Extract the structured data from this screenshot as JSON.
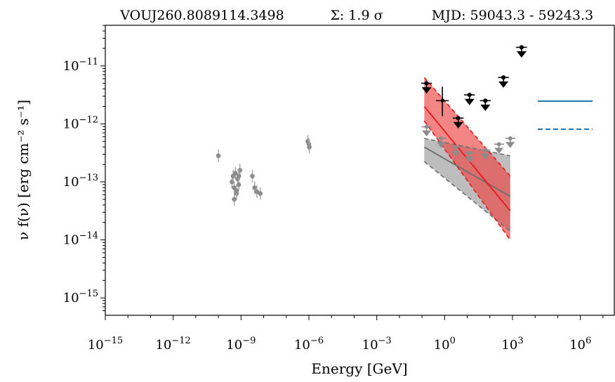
{
  "chart_data": {
    "type": "scatter",
    "title_parts": [
      "VOUJ260.8089114.3498",
      "Σ: 1.9 σ",
      "MJD: 59043.3 - 59243.3"
    ],
    "xlabel": "Energy [GeV]",
    "ylabel": "ν f(ν) [erg cm⁻² s⁻¹]",
    "x_scale": "log",
    "y_scale": "log",
    "xlim_exp": [
      -15,
      7.5
    ],
    "ylim_exp": [
      -15.3,
      -10.3
    ],
    "x_tick_exps": [
      -15,
      -12,
      -9,
      -6,
      -3,
      0,
      3,
      6
    ],
    "y_tick_exps": [
      -15,
      -14,
      -13,
      -12,
      -11
    ],
    "grid": false,
    "colors": {
      "archival": "#8c8c8c",
      "archival_light": "#a8a8a8",
      "fermi_current": "#000000",
      "model_red": "#e41a1c",
      "band_red": "#ee4444",
      "band_grey": "#9a9a9a",
      "legend_blue": "#1f77b4"
    },
    "legend": {
      "position": "right",
      "entries": [
        {
          "style": "solid",
          "label": ""
        },
        {
          "style": "dashed",
          "label": ""
        }
      ]
    },
    "series": [
      {
        "kind": "archival_points",
        "x_exp": [
          -10.0,
          -9.4,
          -9.35,
          -9.3,
          -9.25,
          -9.2,
          -9.15,
          -9.1,
          -9.05,
          -9.3,
          -9.2,
          -9.1,
          -8.5,
          -8.4,
          -8.3,
          -8.15,
          -6.05,
          -6.0,
          -5.98
        ],
        "y_exp": [
          -12.55,
          -13.0,
          -12.9,
          -13.1,
          -12.85,
          -13.2,
          -12.95,
          -13.05,
          -12.8,
          -13.3,
          -13.15,
          -12.9,
          -12.9,
          -13.1,
          -13.17,
          -13.2,
          -12.3,
          -12.35,
          -12.4
        ]
      },
      {
        "kind": "fermi_ul_black",
        "x_exp": [
          -0.8,
          1.1,
          1.8,
          2.6,
          3.4
        ],
        "y_exp": [
          -11.3,
          -11.5,
          -11.6,
          -11.2,
          -10.68
        ]
      },
      {
        "kind": "fermi_ul_black_small",
        "x_exp": [
          0.6
        ],
        "y_exp": [
          -11.9
        ]
      },
      {
        "kind": "fermi_point_black",
        "x_exp": [
          -0.1
        ],
        "y_exp": [
          -11.6
        ]
      },
      {
        "kind": "fermi_ul_grey",
        "x_exp": [
          -0.8,
          -0.15,
          0.5,
          1.1,
          1.8,
          2.4,
          2.9
        ],
        "y_exp": [
          -12.05,
          -12.25,
          -12.4,
          -12.5,
          -12.45,
          -12.35,
          -12.25
        ]
      },
      {
        "kind": "red_model",
        "x_exp": [
          -0.9,
          2.9
        ],
        "y_solid_exp": [
          -11.7,
          -13.5
        ],
        "y_band_top_exp": [
          -11.2,
          -12.9
        ],
        "y_band_bottom_exp": [
          -11.95,
          -14.0
        ]
      },
      {
        "kind": "grey_model",
        "x_exp": [
          -0.9,
          2.9
        ],
        "y_solid_exp": [
          -12.4,
          -13.25
        ],
        "y_band_top_exp": [
          -12.25,
          -12.55
        ],
        "y_band_bottom_exp": [
          -12.65,
          -13.85
        ]
      }
    ]
  }
}
